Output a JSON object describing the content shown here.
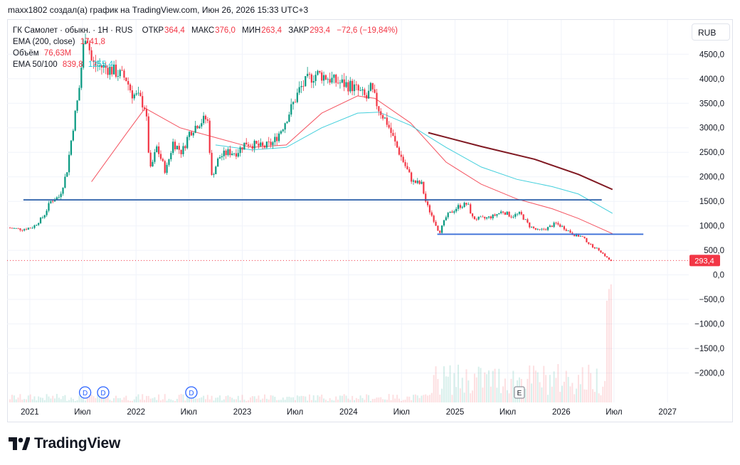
{
  "caption": "maxx1802 создал(а) график на TradingView.com, Июн 26, 2026 15:33 UTC+3",
  "legend": {
    "symbol": "ГК Самолет · обыкн. · 1Н · RUS",
    "open_label": "ОТКР",
    "open_value": "364,4",
    "high_label": "МАКС",
    "high_value": "376,0",
    "low_label": "МИН",
    "low_value": "263,4",
    "close_label": "ЗАКР",
    "close_value": "293,4",
    "change": "−72,6 (−19,84%)",
    "ema200_label": "EMA (200, close)",
    "ema200_value": "1741,8",
    "volume_label": "Объём",
    "volume_value": "76,63M",
    "ema_pair_label": "EMA 50/100",
    "ema50_value": "839,8",
    "ema100_value": "1255,4"
  },
  "currency_button": "RUB",
  "brand": "TradingView",
  "chart_data": {
    "type": "candlestick",
    "currency": "RUB",
    "last_price_label": "293,4",
    "last_price": 293.4,
    "y_ticks": [
      {
        "v": 4500,
        "label": "4500,0"
      },
      {
        "v": 4000,
        "label": "4000,0"
      },
      {
        "v": 3500,
        "label": "3500,0"
      },
      {
        "v": 3000,
        "label": "3000,0"
      },
      {
        "v": 2500,
        "label": "2500,0"
      },
      {
        "v": 2000,
        "label": "2000,0"
      },
      {
        "v": 1500,
        "label": "1500,0"
      },
      {
        "v": 1000,
        "label": "1000,0"
      },
      {
        "v": 500,
        "label": "500,0"
      },
      {
        "v": 0,
        "label": "0,0"
      },
      {
        "v": -500,
        "label": "−500,0"
      },
      {
        "v": -1000,
        "label": "−1000,0"
      },
      {
        "v": -1500,
        "label": "−1500,0"
      },
      {
        "v": -2000,
        "label": "−2000,0"
      }
    ],
    "y_range": [
      -2600,
      5200
    ],
    "x_range": [
      "2020-10-15",
      "2027-03-15"
    ],
    "x_ticks": [
      {
        "t": "2021-01-01",
        "label": "2021"
      },
      {
        "t": "2021-07-01",
        "label": "Июл"
      },
      {
        "t": "2022-01-01",
        "label": "2022"
      },
      {
        "t": "2022-07-01",
        "label": "Июл"
      },
      {
        "t": "2023-01-01",
        "label": "2023"
      },
      {
        "t": "2023-07-01",
        "label": "Июл"
      },
      {
        "t": "2024-01-01",
        "label": "2024"
      },
      {
        "t": "2024-07-01",
        "label": "Июл"
      },
      {
        "t": "2025-01-01",
        "label": "2025"
      },
      {
        "t": "2025-07-01",
        "label": "Июл"
      },
      {
        "t": "2026-01-01",
        "label": "2026"
      },
      {
        "t": "2026-07-01",
        "label": "Июл"
      },
      {
        "t": "2027-01-01",
        "label": "2027"
      }
    ],
    "price_path": [
      [
        "2020-10-25",
        960
      ],
      [
        "2020-12-15",
        930
      ],
      [
        "2021-01-20",
        980
      ],
      [
        "2021-02-25",
        1200
      ],
      [
        "2021-03-20",
        1500
      ],
      [
        "2021-04-20",
        1600
      ],
      [
        "2021-05-15",
        2100
      ],
      [
        "2021-06-05",
        3000
      ],
      [
        "2021-06-25",
        3700
      ],
      [
        "2021-07-10",
        4600
      ],
      [
        "2021-07-20",
        5000
      ],
      [
        "2021-08-10",
        4300
      ],
      [
        "2021-09-10",
        4250
      ],
      [
        "2021-10-10",
        4200
      ],
      [
        "2021-11-10",
        4100
      ],
      [
        "2021-12-05",
        4000
      ],
      [
        "2021-12-25",
        3700
      ],
      [
        "2022-01-20",
        3600
      ],
      [
        "2022-02-10",
        3400
      ],
      [
        "2022-02-25",
        2100
      ],
      [
        "2022-03-20",
        2600
      ],
      [
        "2022-04-20",
        2100
      ],
      [
        "2022-05-15",
        2700
      ],
      [
        "2022-06-15",
        2500
      ],
      [
        "2022-07-10",
        2900
      ],
      [
        "2022-08-10",
        3100
      ],
      [
        "2022-09-10",
        3200
      ],
      [
        "2022-09-25",
        2000
      ],
      [
        "2022-10-20",
        2400
      ],
      [
        "2022-11-20",
        2500
      ],
      [
        "2022-12-20",
        2500
      ],
      [
        "2023-01-20",
        2700
      ],
      [
        "2023-02-20",
        2650
      ],
      [
        "2023-03-20",
        2600
      ],
      [
        "2023-04-25",
        2700
      ],
      [
        "2023-05-25",
        3000
      ],
      [
        "2023-06-25",
        3400
      ],
      [
        "2023-07-25",
        3800
      ],
      [
        "2023-08-25",
        4000
      ],
      [
        "2023-09-20",
        4100
      ],
      [
        "2023-10-20",
        4050
      ],
      [
        "2023-11-20",
        3950
      ],
      [
        "2023-12-20",
        3900
      ],
      [
        "2024-01-20",
        3850
      ],
      [
        "2024-02-20",
        3700
      ],
      [
        "2024-03-10",
        3600
      ],
      [
        "2024-03-25",
        3800
      ],
      [
        "2024-04-20",
        3400
      ],
      [
        "2024-05-20",
        3100
      ],
      [
        "2024-06-15",
        2700
      ],
      [
        "2024-07-15",
        2300
      ],
      [
        "2024-08-15",
        1900
      ],
      [
        "2024-09-15",
        1850
      ],
      [
        "2024-10-01",
        1450
      ],
      [
        "2024-10-25",
        1150
      ],
      [
        "2024-11-15",
        860
      ],
      [
        "2024-12-10",
        1200
      ],
      [
        "2025-01-20",
        1400
      ],
      [
        "2025-02-20",
        1450
      ],
      [
        "2025-03-10",
        1150
      ],
      [
        "2025-04-20",
        1150
      ],
      [
        "2025-05-20",
        1200
      ],
      [
        "2025-06-20",
        1300
      ],
      [
        "2025-07-20",
        1200
      ],
      [
        "2025-08-20",
        1250
      ],
      [
        "2025-09-20",
        1000
      ],
      [
        "2025-10-20",
        900
      ],
      [
        "2025-11-20",
        950
      ],
      [
        "2025-12-20",
        1050
      ],
      [
        "2026-01-20",
        950
      ],
      [
        "2026-02-20",
        820
      ],
      [
        "2026-03-20",
        780
      ],
      [
        "2026-04-20",
        600
      ],
      [
        "2026-05-20",
        500
      ],
      [
        "2026-06-10",
        370
      ],
      [
        "2026-06-26",
        293
      ]
    ],
    "series": [
      {
        "name": "EMA (200, close)",
        "color": "#801922",
        "x": [
          "2024-10-01",
          "2025-04-01",
          "2025-10-01",
          "2026-03-01",
          "2026-06-26"
        ],
        "y": [
          2900,
          2620,
          2360,
          2050,
          1742
        ]
      },
      {
        "name": "EMA 50",
        "color": "#f23645",
        "x": [
          "2021-08-01",
          "2021-12-01",
          "2022-02-01",
          "2022-06-01",
          "2022-10-01",
          "2023-02-01",
          "2023-06-01",
          "2023-10-01",
          "2024-02-01",
          "2024-04-01",
          "2024-08-01",
          "2024-12-01",
          "2025-04-01",
          "2025-08-01",
          "2025-12-01",
          "2026-03-01",
          "2026-06-26"
        ],
        "y": [
          1900,
          2900,
          3400,
          3000,
          2800,
          2600,
          2650,
          3300,
          3650,
          3600,
          3100,
          2300,
          1850,
          1550,
          1350,
          1150,
          840
        ]
      },
      {
        "name": "EMA 100",
        "color": "#22c7d6",
        "x": [
          "2022-10-01",
          "2023-02-01",
          "2023-06-01",
          "2023-10-01",
          "2024-02-01",
          "2024-04-15",
          "2024-08-01",
          "2024-12-01",
          "2025-04-01",
          "2025-08-01",
          "2025-12-01",
          "2026-03-01",
          "2026-06-26"
        ],
        "y": [
          2650,
          2550,
          2600,
          3000,
          3300,
          3320,
          3050,
          2600,
          2200,
          1950,
          1800,
          1650,
          1255
        ]
      }
    ],
    "trend_lines": [
      {
        "name": "support-2021",
        "color": "#2a5ea8",
        "x": [
          "2020-12-10",
          "2026-05-20"
        ],
        "y": [
          1530,
          1530
        ]
      },
      {
        "name": "support-2025",
        "color": "#3b6fd8",
        "x": [
          "2024-11-01",
          "2026-10-10"
        ],
        "y": [
          830,
          830
        ]
      }
    ],
    "dividend_markers": [
      "2021-07-10",
      "2021-09-10",
      "2022-07-10"
    ],
    "dividend_letter": "D",
    "earnings_markers": [
      "2025-08-10"
    ],
    "earnings_letter": "E"
  }
}
